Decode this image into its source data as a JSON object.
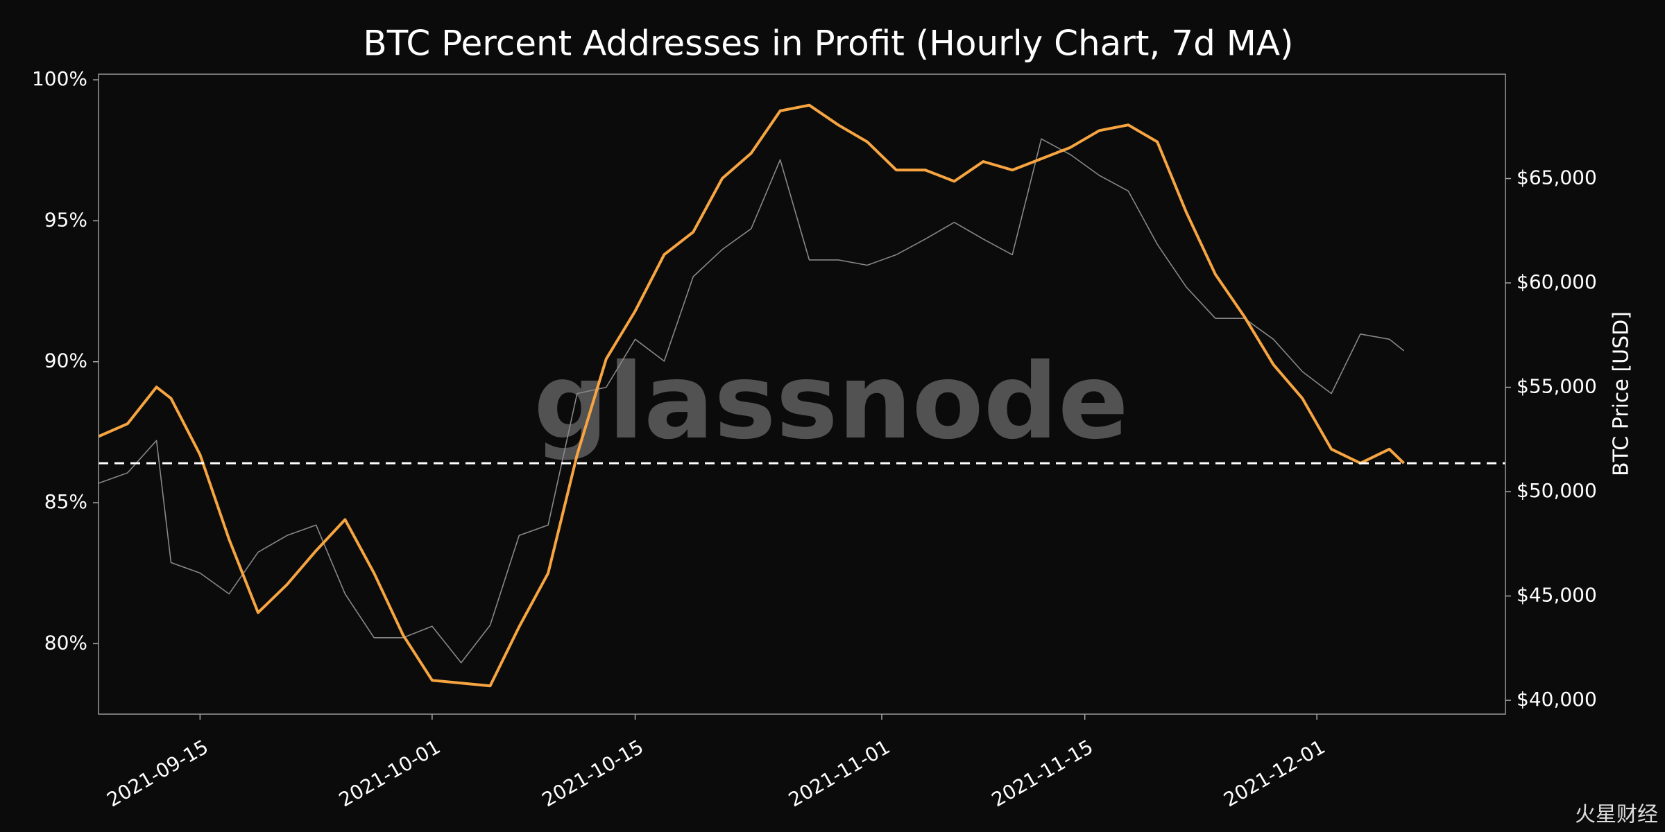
{
  "chart_data": {
    "type": "line",
    "title": "BTC Percent Addresses in Profit (Hourly Chart, 7d MA)",
    "y2label": "BTC Price [USD]",
    "watermark": "glassnode",
    "footer_watermark": "火星财经",
    "x": [
      "2021-09-08",
      "2021-09-10",
      "2021-09-12",
      "2021-09-13",
      "2021-09-15",
      "2021-09-17",
      "2021-09-19",
      "2021-09-21",
      "2021-09-23",
      "2021-09-25",
      "2021-09-27",
      "2021-09-29",
      "2021-10-01",
      "2021-10-03",
      "2021-10-05",
      "2021-10-07",
      "2021-10-09",
      "2021-10-11",
      "2021-10-13",
      "2021-10-15",
      "2021-10-17",
      "2021-10-19",
      "2021-10-21",
      "2021-10-23",
      "2021-10-25",
      "2021-10-27",
      "2021-10-29",
      "2021-10-31",
      "2021-11-02",
      "2021-11-04",
      "2021-11-06",
      "2021-11-08",
      "2021-11-10",
      "2021-11-12",
      "2021-11-14",
      "2021-11-16",
      "2021-11-18",
      "2021-11-20",
      "2021-11-22",
      "2021-11-24",
      "2021-11-26",
      "2021-11-28",
      "2021-11-30",
      "2021-12-02",
      "2021-12-04",
      "2021-12-06",
      "2021-12-07"
    ],
    "series": [
      {
        "color": "#888888",
        "axis": "y2",
        "values": [
          50400,
          50900,
          52450,
          46600,
          46100,
          45100,
          47100,
          47900,
          48400,
          45100,
          43000,
          43000,
          43550,
          41800,
          43600,
          47900,
          48400,
          54700,
          55000,
          57300,
          56250,
          60300,
          61600,
          62600,
          65900,
          61100,
          61100,
          60850,
          61350,
          62100,
          62900,
          62100,
          61350,
          66900,
          66150,
          65150,
          64400,
          61850,
          59800,
          58300,
          58300,
          57300,
          55750,
          54700,
          57550,
          57300,
          56750
        ]
      },
      {
        "color": "#f7a541",
        "values": [
          87.35,
          87.8,
          89.1,
          88.7,
          86.7,
          83.7,
          81.1,
          82.1,
          83.3,
          84.4,
          82.5,
          80.3,
          78.7,
          78.6,
          78.5,
          80.6,
          82.5,
          86.7,
          90.1,
          91.8,
          93.8,
          94.6,
          96.5,
          97.4,
          98.9,
          99.1,
          98.4,
          97.8,
          96.8,
          96.8,
          96.4,
          97.1,
          96.8,
          97.2,
          97.6,
          98.2,
          98.4,
          97.8,
          95.3,
          93.1,
          91.6,
          89.9,
          88.7,
          86.9,
          86.4,
          86.9,
          86.4
        ]
      }
    ],
    "reference_line": 86.4,
    "xlim": [
      "2021-09-08",
      "2021-12-14"
    ],
    "xticks": [
      "2021-09-15",
      "2021-10-01",
      "2021-10-15",
      "2021-11-01",
      "2021-11-15",
      "2021-12-01"
    ],
    "ylim": [
      77.5,
      100.2
    ],
    "yticks": [
      {
        "value": 80,
        "label": "80%"
      },
      {
        "value": 85,
        "label": "85%"
      },
      {
        "value": 90,
        "label": "90%"
      },
      {
        "value": 95,
        "label": "95%"
      },
      {
        "value": 100,
        "label": "100%"
      }
    ],
    "y2lim": [
      39340,
      70000
    ],
    "y2ticks": [
      {
        "value": 40000,
        "label": "$40,000"
      },
      {
        "value": 45000,
        "label": "$45,000"
      },
      {
        "value": 50000,
        "label": "$50,000"
      },
      {
        "value": 55000,
        "label": "$55,000"
      },
      {
        "value": 60000,
        "label": "$60,000"
      },
      {
        "value": 65000,
        "label": "$65,000"
      }
    ],
    "grid": false
  }
}
